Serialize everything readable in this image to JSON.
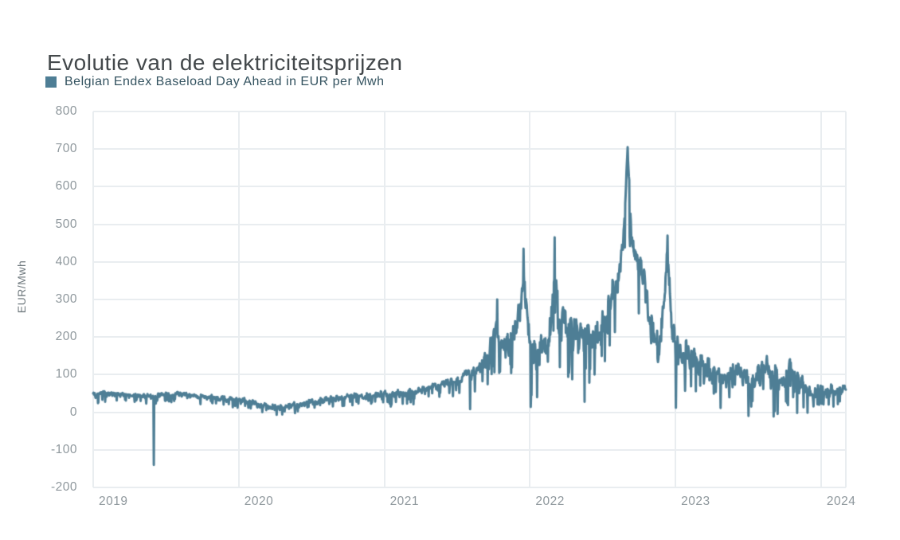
{
  "header": {
    "title": "Evolutie van de elektriciteitsprijzen"
  },
  "legend": {
    "label": "Belgian Endex Baseload Day Ahead in EUR per Mwh",
    "swatch_color": "#4e7e95"
  },
  "colors": {
    "background": "#ffffff",
    "title_text": "#43484b",
    "legend_text": "#33525f",
    "tick_text": "#8e979c",
    "axis_title_text": "#6f797e",
    "line": "#4e7e95",
    "grid": "#e9edf0"
  },
  "chart_data": {
    "type": "line",
    "title": "Evolutie van de elektriciteitsprijzen",
    "ylabel": "EUR/Mwh",
    "unit": "EUR per Mwh",
    "resolution": "daily",
    "grid": true,
    "legend_position": "top-left",
    "xlim": [
      2019,
      2024.17
    ],
    "ylim": [
      -200,
      800
    ],
    "y_ticks": [
      800,
      700,
      600,
      500,
      400,
      300,
      200,
      100,
      0,
      -100,
      -200
    ],
    "x_ticks": [
      2019,
      2020,
      2021,
      2022,
      2023,
      2024
    ],
    "series": [
      {
        "name": "Belgian Endex Baseload Day Ahead in EUR per Mwh",
        "color": "#4e7e95",
        "envelope_points": [
          [
            2019.0,
            46
          ],
          [
            2019.08,
            50
          ],
          [
            2019.17,
            47
          ],
          [
            2019.25,
            44
          ],
          [
            2019.33,
            43
          ],
          [
            2019.42,
            44
          ],
          [
            2019.5,
            48
          ],
          [
            2019.58,
            50
          ],
          [
            2019.67,
            46
          ],
          [
            2019.75,
            41
          ],
          [
            2019.83,
            40
          ],
          [
            2019.92,
            35
          ],
          [
            2020.0,
            33
          ],
          [
            2020.08,
            27
          ],
          [
            2020.17,
            19
          ],
          [
            2020.25,
            14
          ],
          [
            2020.33,
            16
          ],
          [
            2020.42,
            21
          ],
          [
            2020.5,
            27
          ],
          [
            2020.58,
            33
          ],
          [
            2020.67,
            38
          ],
          [
            2020.75,
            41
          ],
          [
            2020.83,
            43
          ],
          [
            2020.92,
            45
          ],
          [
            2021.0,
            52
          ],
          [
            2021.08,
            50
          ],
          [
            2021.17,
            53
          ],
          [
            2021.25,
            58
          ],
          [
            2021.33,
            65
          ],
          [
            2021.42,
            75
          ],
          [
            2021.5,
            85
          ],
          [
            2021.58,
            98
          ],
          [
            2021.63,
            110
          ],
          [
            2021.67,
            128
          ],
          [
            2021.71,
            155
          ],
          [
            2021.75,
            190
          ],
          [
            2021.77,
            235
          ],
          [
            2021.79,
            185
          ],
          [
            2021.83,
            170
          ],
          [
            2021.87,
            190
          ],
          [
            2021.9,
            225
          ],
          [
            2021.94,
            285
          ],
          [
            2021.96,
            385
          ],
          [
            2021.98,
            290
          ],
          [
            2022.0,
            175
          ],
          [
            2022.04,
            185
          ],
          [
            2022.08,
            180
          ],
          [
            2022.12,
            195
          ],
          [
            2022.155,
            290
          ],
          [
            2022.17,
            420
          ],
          [
            2022.19,
            265
          ],
          [
            2022.25,
            240
          ],
          [
            2022.33,
            215
          ],
          [
            2022.42,
            198
          ],
          [
            2022.5,
            235
          ],
          [
            2022.54,
            275
          ],
          [
            2022.58,
            330
          ],
          [
            2022.62,
            400
          ],
          [
            2022.645,
            490
          ],
          [
            2022.66,
            610
          ],
          [
            2022.67,
            690
          ],
          [
            2022.685,
            590
          ],
          [
            2022.7,
            455
          ],
          [
            2022.73,
            420
          ],
          [
            2022.76,
            400
          ],
          [
            2022.79,
            330
          ],
          [
            2022.83,
            235
          ],
          [
            2022.87,
            165
          ],
          [
            2022.9,
            205
          ],
          [
            2022.93,
            335
          ],
          [
            2022.945,
            445
          ],
          [
            2022.97,
            255
          ],
          [
            2023.0,
            165
          ],
          [
            2023.04,
            170
          ],
          [
            2023.08,
            152
          ],
          [
            2023.13,
            140
          ],
          [
            2023.17,
            128
          ],
          [
            2023.25,
            116
          ],
          [
            2023.33,
            103
          ],
          [
            2023.42,
            96
          ],
          [
            2023.5,
            92
          ],
          [
            2023.58,
            102
          ],
          [
            2023.63,
            112
          ],
          [
            2023.67,
            104
          ],
          [
            2023.71,
            96
          ],
          [
            2023.75,
            102
          ],
          [
            2023.79,
            118
          ],
          [
            2023.83,
            88
          ],
          [
            2023.87,
            72
          ],
          [
            2023.92,
            66
          ],
          [
            2023.96,
            60
          ],
          [
            2024.0,
            64
          ],
          [
            2024.08,
            56
          ],
          [
            2024.17,
            60
          ]
        ],
        "noise_amplitude_points": [
          [
            2019.0,
            7
          ],
          [
            2019.5,
            7
          ],
          [
            2020.0,
            8
          ],
          [
            2020.3,
            8
          ],
          [
            2020.9,
            7
          ],
          [
            2021.0,
            9
          ],
          [
            2021.3,
            10
          ],
          [
            2021.5,
            12
          ],
          [
            2021.65,
            18
          ],
          [
            2021.75,
            38
          ],
          [
            2021.9,
            42
          ],
          [
            2022.0,
            52
          ],
          [
            2022.15,
            48
          ],
          [
            2022.3,
            50
          ],
          [
            2022.5,
            45
          ],
          [
            2022.62,
            35
          ],
          [
            2022.67,
            14
          ],
          [
            2022.72,
            35
          ],
          [
            2022.85,
            50
          ],
          [
            2022.95,
            30
          ],
          [
            2023.0,
            40
          ],
          [
            2023.1,
            34
          ],
          [
            2023.3,
            30
          ],
          [
            2023.5,
            33
          ],
          [
            2023.7,
            38
          ],
          [
            2023.85,
            28
          ],
          [
            2024.0,
            20
          ],
          [
            2024.17,
            14
          ]
        ],
        "spike_days": [
          [
            2019.417,
            -140
          ],
          [
            2020.3,
            -6
          ],
          [
            2021.045,
            15
          ],
          [
            2021.59,
            8
          ],
          [
            2021.775,
            300
          ],
          [
            2021.957,
            435
          ],
          [
            2022.005,
            14
          ],
          [
            2022.17,
            465
          ],
          [
            2022.375,
            28
          ],
          [
            2022.67,
            705
          ],
          [
            2022.945,
            470
          ],
          [
            2023.003,
            12
          ],
          [
            2023.5,
            -10
          ],
          [
            2023.835,
            -2
          ]
        ],
        "key_values": {
          "start_2019": 46,
          "negative_spike_jun_2019": -140,
          "covid_low_2020": 14,
          "oct_2021_spike": 300,
          "dec_2021_spike": 435,
          "mar_2022_spike": 465,
          "aug_2022_peak": 705,
          "dec_2022_spike": 470,
          "end_2023": 60
        }
      }
    ]
  }
}
